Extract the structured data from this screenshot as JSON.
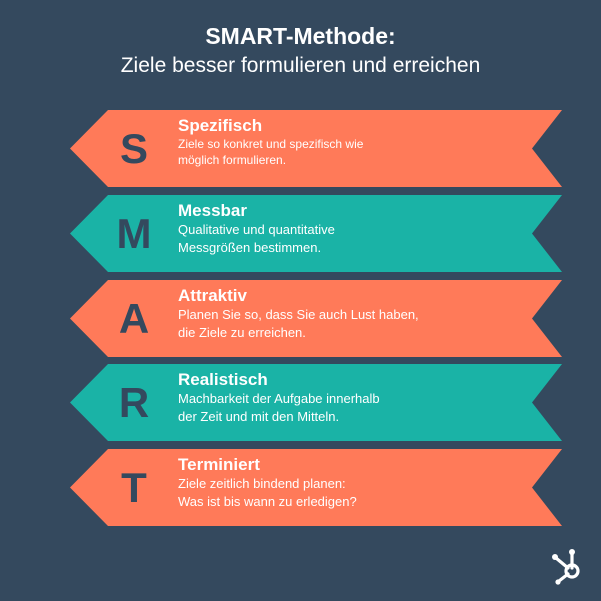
{
  "header": {
    "title": "SMART-Methode:",
    "subtitle": "Ziele besser formulieren und erreichen"
  },
  "colors": {
    "background": "#34495e",
    "orange": "#ff7a59",
    "teal": "#1ab3a6",
    "letter": "#34495e",
    "text": "#ffffff"
  },
  "rows": [
    {
      "letter": "S",
      "heading": "Spezifisch",
      "line1": "Ziele so konkret und spezifisch wie",
      "line2": "möglich formulieren.",
      "color": "orange"
    },
    {
      "letter": "M",
      "heading": "Messbar",
      "line1": "Qualitative und quantitative",
      "line2": "Messgrößen bestimmen.",
      "color": "teal"
    },
    {
      "letter": "A",
      "heading": "Attraktiv",
      "line1": "Planen Sie so, dass Sie auch Lust haben,",
      "line2": "die Ziele zu erreichen.",
      "color": "orange"
    },
    {
      "letter": "R",
      "heading": "Realistisch",
      "line1": "Machbarkeit der Aufgabe innerhalb",
      "line2": "der Zeit und mit den Mitteln.",
      "color": "teal"
    },
    {
      "letter": "T",
      "heading": "Terminiert",
      "line1": "Ziele zeitlich bindend planen:",
      "line2": "Was ist bis wann zu erledigen?",
      "color": "orange"
    }
  ],
  "logo": {
    "icon": "hubspot-sprocket-icon"
  }
}
